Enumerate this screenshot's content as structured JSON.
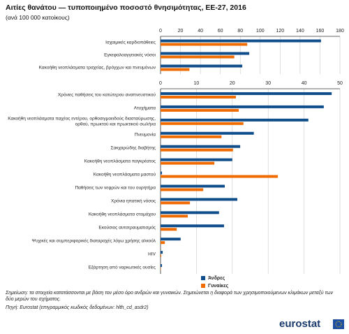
{
  "title": "Αιτίες θανάτου — τυποποιημένο ποσοστό θνησιμότητας, ΕΕ-27, 2016",
  "subtitle": "(ανά 100 000 κατοίκους)",
  "note": "Σημείωση: τα στοιχεία κατατάσσονται με βάση τον μέσο όρο ανδρών και γυναικών. Σημειώνεται η διαφορά των χρησιμοποιούμενων κλιμάκων μεταξύ των δύο μερών του σχήματος.",
  "source": "Πηγή: Eurostat (επιγραμμικός κωδικός δεδομένων: hlth_cd_asdr2)",
  "logo": "eurostat",
  "chart_data": [
    {
      "type": "bar",
      "orientation": "horizontal",
      "categories": [
        "Ισχαιμικές καρδιοπάθειες",
        "Εγκεφαλοαγγειακές νόσοι",
        "Κακοήθη νεοπλάσματα τραχείας, βρόγχων και πνευμόνων"
      ],
      "series": [
        {
          "color": "#104e8b",
          "values": [
            161,
            89,
            82
          ]
        },
        {
          "color": "#f06c00",
          "values": [
            87,
            74,
            29
          ]
        }
      ],
      "xlim": [
        0,
        180
      ],
      "xticks": [
        0,
        20,
        40,
        60,
        80,
        100,
        120,
        140,
        160,
        180
      ],
      "grid": true
    },
    {
      "type": "bar",
      "orientation": "horizontal",
      "categories": [
        "Χρόνιες παθήσεις του κατώτερου αναπνευστικού",
        "Ατυχήματα",
        "Κακοήθη νεοπλάσματα παχέος εντέρου, ορθοσιγμοειδούς διασταύρωσης, ορθού, πρωκτού και πρωκτικού σωλήνα",
        "Πνευμονία",
        "Σακχαρώδης διαβήτης",
        "Κακοήθη νεοπλάσματα παγκρέατος",
        "Κακοήθη νεοπλάσματα μαστού",
        "Παθήσεις των νεφρών και του ουρητήρα",
        "Χρόνια ηπατική νόσος",
        "Κακοήθη νεοπλάσματα στομάχου",
        "Εκούσιος αυτοτραυματισμός",
        "Ψυχικές και συμπεριφορικές διαταραχές λόγω χρήσης αλκοόλ",
        "HIV",
        "Εξάρτηση από ναρκωτικές ουσίες"
      ],
      "series": [
        {
          "name": "Άνδρες",
          "color": "#104e8b",
          "values": [
            47.7,
            45.5,
            41.2,
            26,
            22.2,
            20,
            0.4,
            17.9,
            21.4,
            16.3,
            17.7,
            5.6,
            0.6,
            0.4
          ]
        },
        {
          "name": "Γυναίκες",
          "color": "#f06c00",
          "values": [
            21,
            21.8,
            23.1,
            17,
            20.2,
            15,
            32.7,
            11.9,
            8.2,
            7.6,
            4.5,
            1.2,
            0.2,
            0.1
          ]
        }
      ],
      "xlim": [
        0,
        50
      ],
      "xticks": [
        0,
        10,
        20,
        30,
        40,
        50
      ],
      "grid": true
    }
  ]
}
